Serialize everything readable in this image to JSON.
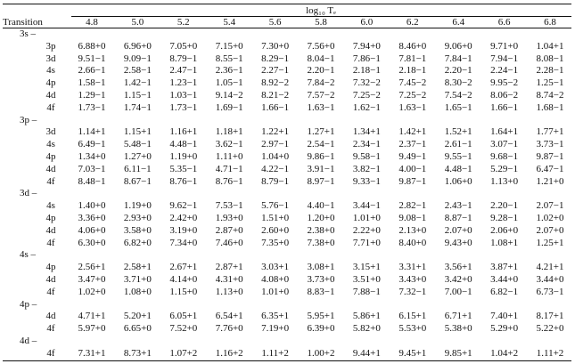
{
  "table": {
    "header": {
      "span_label": "log₁₀ Tₑ",
      "first": "Transition",
      "columns": [
        "4.8",
        "5.0",
        "5.2",
        "5.4",
        "5.6",
        "5.8",
        "6.0",
        "6.2",
        "6.4",
        "6.6",
        "6.8"
      ]
    },
    "groups": [
      {
        "label": "3s –",
        "rows": [
          {
            "label": "3p",
            "values": [
              "6.88+0",
              "6.96+0",
              "7.05+0",
              "7.15+0",
              "7.30+0",
              "7.56+0",
              "7.94+0",
              "8.46+0",
              "9.06+0",
              "9.71+0",
              "1.04+1"
            ]
          },
          {
            "label": "3d",
            "values": [
              "9.51−1",
              "9.09−1",
              "8.79−1",
              "8.55−1",
              "8.29−1",
              "8.04−1",
              "7.86−1",
              "7.81−1",
              "7.84−1",
              "7.94−1",
              "8.08−1"
            ]
          },
          {
            "label": "4s",
            "values": [
              "2.66−1",
              "2.58−1",
              "2.47−1",
              "2.36−1",
              "2.27−1",
              "2.20−1",
              "2.18−1",
              "2.18−1",
              "2.20−1",
              "2.24−1",
              "2.28−1"
            ]
          },
          {
            "label": "4p",
            "values": [
              "1.58−1",
              "1.42−1",
              "1.23−1",
              "1.05−1",
              "8.92−2",
              "7.84−2",
              "7.32−2",
              "7.45−2",
              "8.30−2",
              "9.95−2",
              "1.25−1"
            ]
          },
          {
            "label": "4d",
            "values": [
              "1.29−1",
              "1.15−1",
              "1.03−1",
              "9.14−2",
              "8.21−2",
              "7.57−2",
              "7.25−2",
              "7.25−2",
              "7.54−2",
              "8.06−2",
              "8.74−2"
            ]
          },
          {
            "label": "4f",
            "values": [
              "1.73−1",
              "1.74−1",
              "1.73−1",
              "1.69−1",
              "1.66−1",
              "1.63−1",
              "1.62−1",
              "1.63−1",
              "1.65−1",
              "1.66−1",
              "1.68−1"
            ]
          }
        ]
      },
      {
        "label": "3p –",
        "rows": [
          {
            "label": "3d",
            "values": [
              "1.14+1",
              "1.15+1",
              "1.16+1",
              "1.18+1",
              "1.22+1",
              "1.27+1",
              "1.34+1",
              "1.42+1",
              "1.52+1",
              "1.64+1",
              "1.77+1"
            ]
          },
          {
            "label": "4s",
            "values": [
              "6.49−1",
              "5.48−1",
              "4.48−1",
              "3.62−1",
              "2.97−1",
              "2.54−1",
              "2.34−1",
              "2.37−1",
              "2.61−1",
              "3.07−1",
              "3.73−1"
            ]
          },
          {
            "label": "4p",
            "values": [
              "1.34+0",
              "1.27+0",
              "1.19+0",
              "1.11+0",
              "1.04+0",
              "9.86−1",
              "9.58−1",
              "9.49−1",
              "9.55−1",
              "9.68−1",
              "9.87−1"
            ]
          },
          {
            "label": "4d",
            "values": [
              "7.03−1",
              "6.11−1",
              "5.35−1",
              "4.71−1",
              "4.22−1",
              "3.91−1",
              "3.82−1",
              "4.00−1",
              "4.48−1",
              "5.29−1",
              "6.47−1"
            ]
          },
          {
            "label": "4f",
            "values": [
              "8.48−1",
              "8.67−1",
              "8.76−1",
              "8.76−1",
              "8.79−1",
              "8.97−1",
              "9.33−1",
              "9.87−1",
              "1.06+0",
              "1.13+0",
              "1.21+0"
            ]
          }
        ]
      },
      {
        "label": "3d –",
        "rows": [
          {
            "label": "4s",
            "values": [
              "1.40+0",
              "1.19+0",
              "9.62−1",
              "7.53−1",
              "5.76−1",
              "4.40−1",
              "3.44−1",
              "2.82−1",
              "2.43−1",
              "2.20−1",
              "2.07−1"
            ]
          },
          {
            "label": "4p",
            "values": [
              "3.36+0",
              "2.93+0",
              "2.42+0",
              "1.93+0",
              "1.51+0",
              "1.20+0",
              "1.01+0",
              "9.08−1",
              "8.87−1",
              "9.28−1",
              "1.02+0"
            ]
          },
          {
            "label": "4d",
            "values": [
              "4.06+0",
              "3.58+0",
              "3.19+0",
              "2.87+0",
              "2.60+0",
              "2.38+0",
              "2.22+0",
              "2.13+0",
              "2.07+0",
              "2.06+0",
              "2.07+0"
            ]
          },
          {
            "label": "4f",
            "values": [
              "6.30+0",
              "6.82+0",
              "7.34+0",
              "7.46+0",
              "7.35+0",
              "7.38+0",
              "7.71+0",
              "8.40+0",
              "9.43+0",
              "1.08+1",
              "1.25+1"
            ]
          }
        ]
      },
      {
        "label": "4s –",
        "rows": [
          {
            "label": "4p",
            "values": [
              "2.56+1",
              "2.58+1",
              "2.67+1",
              "2.87+1",
              "3.03+1",
              "3.08+1",
              "3.15+1",
              "3.31+1",
              "3.56+1",
              "3.87+1",
              "4.21+1"
            ]
          },
          {
            "label": "4d",
            "values": [
              "3.47+0",
              "3.71+0",
              "4.14+0",
              "4.31+0",
              "4.08+0",
              "3.73+0",
              "3.51+0",
              "3.43+0",
              "3.42+0",
              "3.44+0",
              "3.44+0"
            ]
          },
          {
            "label": "4f",
            "values": [
              "1.02+0",
              "1.08+0",
              "1.15+0",
              "1.13+0",
              "1.01+0",
              "8.83−1",
              "7.88−1",
              "7.32−1",
              "7.00−1",
              "6.82−1",
              "6.73−1"
            ]
          }
        ]
      },
      {
        "label": "4p –",
        "rows": [
          {
            "label": "4d",
            "values": [
              "4.71+1",
              "5.20+1",
              "6.05+1",
              "6.54+1",
              "6.35+1",
              "5.95+1",
              "5.86+1",
              "6.15+1",
              "6.71+1",
              "7.40+1",
              "8.17+1"
            ]
          },
          {
            "label": "4f",
            "values": [
              "5.97+0",
              "6.65+0",
              "7.52+0",
              "7.76+0",
              "7.19+0",
              "6.39+0",
              "5.82+0",
              "5.53+0",
              "5.38+0",
              "5.29+0",
              "5.22+0"
            ]
          }
        ]
      },
      {
        "label": "4d –",
        "rows": [
          {
            "label": "4f",
            "values": [
              "7.31+1",
              "8.73+1",
              "1.07+2",
              "1.16+2",
              "1.11+2",
              "1.00+2",
              "9.44+1",
              "9.45+1",
              "9.85+1",
              "1.04+2",
              "1.11+2"
            ]
          }
        ]
      }
    ]
  }
}
